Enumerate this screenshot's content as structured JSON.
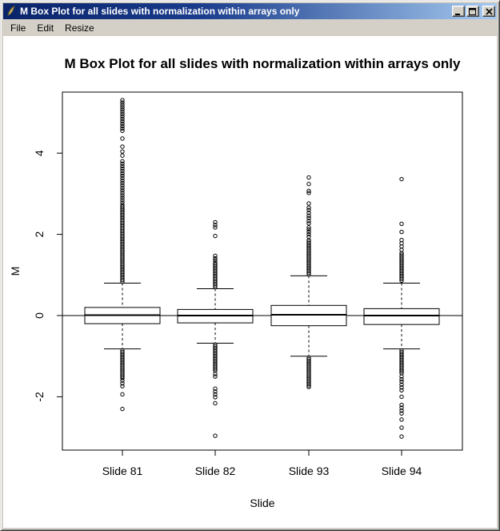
{
  "window": {
    "title": "M Box Plot for all slides with normalization within arrays only",
    "icon": "quill-graphics-icon",
    "menu": [
      "File",
      "Edit",
      "Resize"
    ],
    "controls": {
      "minimize": "minimize",
      "maximize": "maximize",
      "close": "close"
    }
  },
  "colors": {
    "titlebar_left": "#0A246A",
    "titlebar_right": "#A6CAF0",
    "chrome": "#D4D0C8",
    "client_bg": "#FFFFFF",
    "plot_fg": "#000000"
  },
  "chart_data": {
    "type": "boxplot",
    "title": "M Box Plot for all slides with normalization within arrays only",
    "xlabel": "Slide",
    "ylabel": "M",
    "categories": [
      "Slide 81",
      "Slide 82",
      "Slide 93",
      "Slide 94"
    ],
    "yticks": [
      -2,
      0,
      2,
      4
    ],
    "ylim": [
      -3.3,
      5.5
    ],
    "grid": false,
    "legend": null,
    "reference_line_y": 0,
    "series": [
      {
        "name": "Slide 81",
        "q1": -0.2,
        "median": 0.01,
        "q3": 0.2,
        "whisker_low": -0.82,
        "whisker_high": 0.8,
        "outliers_high": [
          {
            "from": 0.84,
            "to": 2.72,
            "step": 0.04
          },
          {
            "from": 2.78,
            "to": 3.84,
            "step": 0.06
          },
          3.94,
          4.04,
          4.16,
          4.36,
          {
            "from": 4.55,
            "to": 5.36,
            "step": 0.058
          }
        ],
        "outliers_low": [
          {
            "from": -0.86,
            "to": -1.56,
            "step": 0.04
          },
          {
            "from": -1.6,
            "to": -1.74,
            "step": 0.07
          },
          -1.94,
          -2.3
        ]
      },
      {
        "name": "Slide 82",
        "q1": -0.18,
        "median": 0.0,
        "q3": 0.15,
        "whisker_low": -0.68,
        "whisker_high": 0.66,
        "outliers_high": [
          {
            "from": 0.7,
            "to": 1.3,
            "step": 0.04
          },
          1.36,
          1.41,
          1.47,
          1.96,
          2.17,
          2.23,
          2.3
        ],
        "outliers_low": [
          {
            "from": -0.72,
            "to": -1.36,
            "step": 0.04
          },
          -1.44,
          -1.5,
          -1.8,
          -1.87,
          -1.94,
          -2.01,
          -2.16,
          -2.96
        ]
      },
      {
        "name": "Slide 93",
        "q1": -0.25,
        "median": 0.02,
        "q3": 0.25,
        "whisker_low": -1.0,
        "whisker_high": 0.98,
        "outliers_high": [
          {
            "from": 1.02,
            "to": 1.86,
            "step": 0.04
          },
          1.94,
          2.0,
          2.06,
          2.12,
          2.17,
          2.27,
          2.33,
          2.4,
          2.46,
          2.53,
          2.6,
          2.66,
          2.76,
          3.02,
          3.07,
          3.24,
          3.4
        ],
        "outliers_low": [
          {
            "from": -1.04,
            "to": -1.76,
            "step": 0.04
          }
        ]
      },
      {
        "name": "Slide 94",
        "q1": -0.22,
        "median": 0.0,
        "q3": 0.17,
        "whisker_low": -0.82,
        "whisker_high": 0.8,
        "outliers_high": [
          {
            "from": 0.86,
            "to": 1.54,
            "step": 0.04
          },
          1.62,
          1.7,
          1.78,
          1.86,
          2.06,
          2.26,
          3.36
        ],
        "outliers_low": [
          {
            "from": -0.86,
            "to": -1.44,
            "step": 0.04
          },
          -1.5,
          -1.57,
          -1.63,
          -1.7,
          -1.77,
          -1.84,
          -2.0,
          -2.2,
          -2.27,
          -2.34,
          -2.41,
          -2.56,
          -2.76,
          -2.98
        ]
      }
    ]
  }
}
